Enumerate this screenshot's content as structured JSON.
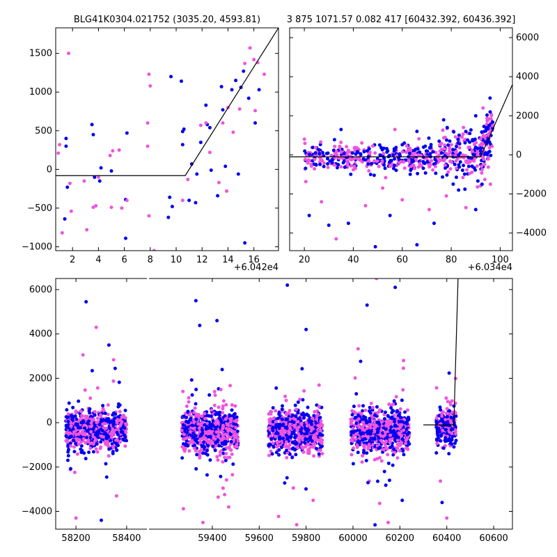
{
  "chart_data": [
    {
      "type": "scatter",
      "title": "BLG41K0304.021752 (3035.20, 4593.81)",
      "xlabel": "",
      "ylabel": "",
      "offset_label": "+6.042e4",
      "xlim": [
        0.7,
        17.9
      ],
      "ylim": [
        -1050,
        1830
      ],
      "xticks": [
        2,
        4,
        6,
        8,
        10,
        12,
        14,
        16
      ],
      "yticks": [
        -1000,
        -500,
        0,
        500,
        1000,
        1500
      ],
      "y_axis_side": "left",
      "series_colors": {
        "blue": "#0000ee",
        "magenta": "#ee55dd",
        "model": "#000000"
      },
      "series": [
        {
          "values": [
            [
              1.4,
              -640
            ],
            [
              1.5,
              300
            ],
            [
              1.5,
              400
            ],
            [
              1.6,
              -230
            ],
            [
              3.5,
              580
            ],
            [
              3.6,
              450
            ],
            [
              3.7,
              -100
            ],
            [
              4.1,
              -150
            ],
            [
              4.2,
              20
            ],
            [
              5.0,
              -20
            ],
            [
              6.1,
              -390
            ],
            [
              6.1,
              -890
            ],
            [
              6.2,
              470
            ],
            [
              9.4,
              -620
            ],
            [
              9.5,
              -360
            ],
            [
              9.6,
              1200
            ],
            [
              9.7,
              -480
            ],
            [
              10.4,
              1140
            ],
            [
              10.5,
              490
            ],
            [
              10.6,
              520
            ],
            [
              10.5,
              320
            ],
            [
              11.0,
              -400
            ],
            [
              11.2,
              70
            ],
            [
              11.6,
              -60
            ],
            [
              11.5,
              -430
            ],
            [
              11.9,
              350
            ],
            [
              12.3,
              830
            ],
            [
              12.4,
              580
            ],
            [
              12.6,
              540
            ],
            [
              12.7,
              -10
            ],
            [
              13.2,
              -340
            ],
            [
              13.5,
              1070
            ],
            [
              13.6,
              770
            ],
            [
              13.8,
              40
            ],
            [
              14.3,
              1030
            ],
            [
              14.6,
              1150
            ],
            [
              14.8,
              -60
            ],
            [
              15.0,
              1060
            ],
            [
              15.2,
              1270
            ],
            [
              15.3,
              -950
            ],
            [
              15.6,
              920
            ],
            [
              16.1,
              600
            ],
            [
              16.4,
              1030
            ]
          ]
        },
        {
          "values": [
            [
              0.9,
              210
            ],
            [
              1.0,
              320
            ],
            [
              1.2,
              -820
            ],
            [
              1.7,
              1500
            ],
            [
              1.8,
              -180
            ],
            [
              1.9,
              -540
            ],
            [
              2.9,
              -150
            ],
            [
              3.1,
              -780
            ],
            [
              3.6,
              -490
            ],
            [
              3.8,
              -470
            ],
            [
              4.0,
              -100
            ],
            [
              4.9,
              180
            ],
            [
              5.0,
              -490
            ],
            [
              5.1,
              240
            ],
            [
              5.6,
              250
            ],
            [
              5.8,
              -500
            ],
            [
              6.2,
              -400
            ],
            [
              7.8,
              600
            ],
            [
              7.9,
              1230
            ],
            [
              8.0,
              1080
            ],
            [
              7.8,
              300
            ],
            [
              7.9,
              -600
            ],
            [
              8.3,
              -1050
            ],
            [
              10.5,
              -400
            ],
            [
              10.9,
              -130
            ],
            [
              11.9,
              570
            ],
            [
              12.3,
              600
            ],
            [
              12.6,
              220
            ],
            [
              13.3,
              -170
            ],
            [
              13.6,
              600
            ],
            [
              13.9,
              -280
            ],
            [
              14.0,
              800
            ],
            [
              14.4,
              480
            ],
            [
              14.9,
              780
            ],
            [
              15.3,
              1370
            ],
            [
              15.7,
              1570
            ],
            [
              16.0,
              1420
            ],
            [
              16.1,
              760
            ],
            [
              16.3,
              1380
            ],
            [
              16.8,
              1230
            ]
          ]
        },
        {
          "type": "model",
          "values": [
            [
              0.7,
              -80
            ],
            [
              10.7,
              -80
            ],
            [
              17.9,
              1830
            ]
          ]
        }
      ]
    },
    {
      "type": "scatter",
      "title": "3 875 1071.57 0.082 417 [60432.392, 60436.392]",
      "xlabel": "",
      "ylabel": "",
      "offset_label": "+6.034e4",
      "xlim": [
        14,
        105
      ],
      "ylim": [
        -4900,
        6500
      ],
      "xticks": [
        20,
        40,
        60,
        80,
        100
      ],
      "yticks": [
        -4000,
        -2000,
        0,
        2000,
        4000,
        6000
      ],
      "y_axis_side": "right",
      "series_colors": {
        "blue": "#0000ee",
        "magenta": "#ee55dd",
        "model": "#000000"
      },
      "model": [
        [
          14,
          -100
        ],
        [
          92,
          -100
        ],
        [
          105,
          3600
        ]
      ],
      "clusters": [
        {
          "x_range": [
            20,
            75
          ],
          "y_center": -150,
          "y_spread": 350,
          "n": 380
        },
        {
          "x_range": [
            75,
            93
          ],
          "y_center": -50,
          "y_spread": 600,
          "n": 180
        },
        {
          "x_range": [
            92,
            97
          ],
          "y_center": 700,
          "y_spread": 700,
          "n": 90
        }
      ],
      "outliers": [
        [
          22,
          -3100
        ],
        [
          27,
          -2400
        ],
        [
          30,
          -3600
        ],
        [
          33,
          -4300
        ],
        [
          38,
          -3500
        ],
        [
          45,
          -2600
        ],
        [
          49,
          -4700
        ],
        [
          52,
          -1700
        ],
        [
          55,
          -3100
        ],
        [
          60,
          -2300
        ],
        [
          66,
          -4600
        ],
        [
          71,
          -2800
        ],
        [
          73,
          -3500
        ],
        [
          78,
          -2100
        ],
        [
          83,
          -1800
        ],
        [
          86,
          -2700
        ],
        [
          90,
          -2800
        ],
        [
          96,
          -1500
        ],
        [
          35,
          1300
        ],
        [
          57,
          1300
        ],
        [
          66,
          1200
        ],
        [
          85,
          1400
        ],
        [
          90,
          2000
        ],
        [
          93,
          2400
        ]
      ]
    },
    {
      "type": "scatter",
      "title": "",
      "xlabel": "",
      "ylabel": "",
      "broken_x_axis": true,
      "segments": [
        {
          "xlim": [
            58120,
            58480
          ],
          "xticks": [
            58200,
            58400
          ]
        },
        {
          "xlim": [
            59130,
            60680
          ],
          "xticks": [
            59400,
            59600,
            59800,
            60000,
            60200,
            60400,
            60600
          ]
        }
      ],
      "ylim": [
        -4800,
        6500
      ],
      "yticks": [
        -4000,
        -2000,
        0,
        2000,
        4000,
        6000
      ],
      "series_colors": {
        "blue": "#0000ee",
        "magenta": "#ee55dd",
        "model": "#000000"
      },
      "model": [
        [
          60300,
          -100
        ],
        [
          60430,
          -100
        ],
        [
          60448,
          6500
        ]
      ],
      "seasons": [
        {
          "x_range": [
            58160,
            58400
          ],
          "y_center": -300,
          "y_spread": 420,
          "n": 700
        },
        {
          "x_range": [
            59270,
            59510
          ],
          "y_center": -400,
          "y_spread": 460,
          "n": 700
        },
        {
          "x_range": [
            59640,
            59870
          ],
          "y_center": -400,
          "y_spread": 480,
          "n": 650
        },
        {
          "x_range": [
            59990,
            60240
          ],
          "y_center": -400,
          "y_spread": 480,
          "n": 650
        },
        {
          "x_range": [
            60355,
            60440
          ],
          "y_center": -200,
          "y_spread": 450,
          "n": 220
        }
      ],
      "outliers": [
        [
          58240,
          5450
        ],
        [
          58280,
          4300
        ],
        [
          58330,
          3500
        ],
        [
          58200,
          -4300
        ],
        [
          58300,
          -4400
        ],
        [
          58360,
          -3300
        ],
        [
          59330,
          5500
        ],
        [
          59360,
          -4500
        ],
        [
          59420,
          4600
        ],
        [
          59470,
          -3800
        ],
        [
          59720,
          6200
        ],
        [
          59760,
          -4600
        ],
        [
          59800,
          4200
        ],
        [
          59830,
          -3500
        ],
        [
          60060,
          5300
        ],
        [
          60100,
          6500
        ],
        [
          60180,
          6100
        ],
        [
          60150,
          -4500
        ],
        [
          60210,
          -3500
        ],
        [
          60400,
          -4300
        ],
        [
          60380,
          -3600
        ]
      ]
    }
  ]
}
